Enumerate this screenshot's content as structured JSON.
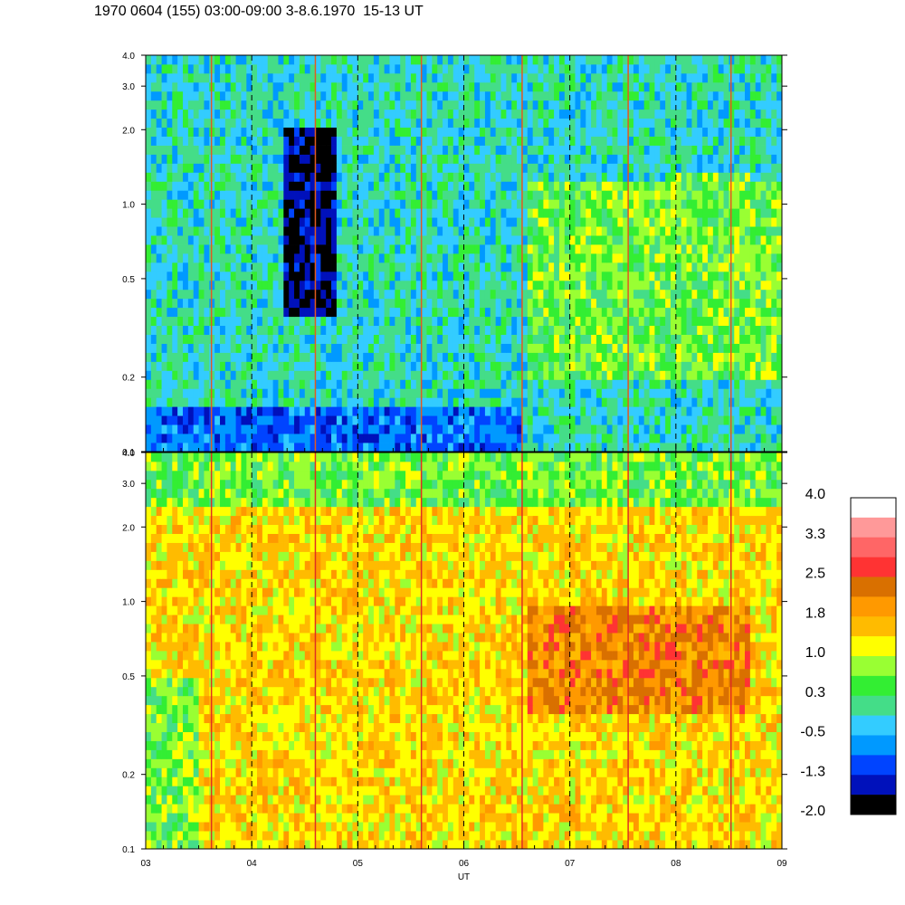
{
  "title": "1970 0604 (155) 03:00-09:00 3-8.6.1970  15-13 UT",
  "chart_data": {
    "type": "heatmap",
    "xlabel": "UT",
    "x_ticks": [
      "03",
      "04",
      "05",
      "06",
      "07",
      "08",
      "09"
    ],
    "xlim": [
      3,
      9
    ],
    "y_scale": "log",
    "ylim": [
      0.1,
      4.0
    ],
    "y_ticks": [
      "0.1",
      "0.2",
      "0.5",
      "1.0",
      "2.0",
      "3.0",
      "4.0"
    ],
    "grid": "vertical dashed lines at each hour",
    "panels": [
      {
        "name": "top",
        "dominant_level": 0.3,
        "features": [
          {
            "x": [
              3.0,
              6.55
            ],
            "y": [
              0.1,
              0.15
            ],
            "level": -0.5
          },
          {
            "x": [
              6.6,
              9.0
            ],
            "y": [
              0.1,
              0.2
            ],
            "level": 0.3
          },
          {
            "x": [
              6.6,
              9.0
            ],
            "y": [
              0.2,
              1.2
            ],
            "level": 1.0
          },
          {
            "x": [
              7.9,
              8.7
            ],
            "y": [
              0.85,
              1.3
            ],
            "level": 1.0
          },
          {
            "x": [
              4.3,
              4.8
            ],
            "y": [
              0.35,
              2.0
            ],
            "level": -1.3
          }
        ],
        "spikes": [
          3.62,
          4.6,
          5.6,
          6.55,
          7.55,
          8.52
        ]
      },
      {
        "name": "bottom",
        "dominant_level": 1.8,
        "features": [
          {
            "x": [
              6.6,
              8.7
            ],
            "y": [
              0.35,
              1.0
            ],
            "level": 2.5
          },
          {
            "x": [
              3.0,
              9.0
            ],
            "y": [
              0.1,
              0.35
            ],
            "level": 1.8
          },
          {
            "x": [
              3.0,
              9.0
            ],
            "y": [
              2.5,
              4.0
            ],
            "level": 1.0
          },
          {
            "x": [
              3.0,
              3.5
            ],
            "y": [
              0.1,
              0.5
            ],
            "level": 1.0
          },
          {
            "x": [
              3.5,
              4.0
            ],
            "y": [
              0.6,
              0.9
            ],
            "level": 1.8
          }
        ],
        "spikes": [
          3.62,
          4.6,
          5.6,
          6.55,
          7.55,
          8.52
        ]
      }
    ],
    "colorbar": {
      "labels": [
        "4.0",
        "3.3",
        "2.5",
        "1.8",
        "1.0",
        "0.3",
        "-0.5",
        "-1.3",
        "-2.0"
      ],
      "colors": [
        "#ffffff",
        "#ff9999",
        "#ff6666",
        "#ff3333",
        "#d97000",
        "#ff9900",
        "#ffbb00",
        "#ffff00",
        "#99ff33",
        "#33ee33",
        "#44dd88",
        "#33ccff",
        "#0099ff",
        "#0044ff",
        "#0011bb",
        "#000000"
      ],
      "levels": [
        4.0,
        3.6,
        3.3,
        2.9,
        2.5,
        2.2,
        1.8,
        1.4,
        1.0,
        0.7,
        0.3,
        -0.1,
        -0.5,
        -0.9,
        -1.3,
        -2.0
      ]
    }
  }
}
